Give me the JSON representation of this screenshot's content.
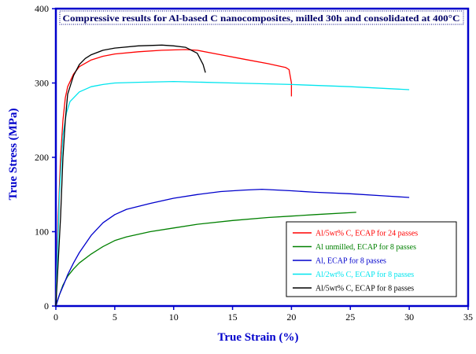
{
  "chart_data": {
    "type": "line",
    "title": "Compressive results for Al-based C nanocomposites, milled 30h and consolidated at 400°C",
    "xlabel": "True Strain (%)",
    "ylabel": "True Stress (MPa)",
    "xlim": [
      0,
      35
    ],
    "ylim": [
      0,
      400
    ],
    "x_ticks": [
      0,
      5,
      10,
      15,
      20,
      25,
      30,
      35
    ],
    "y_ticks": [
      0,
      100,
      200,
      300,
      400
    ],
    "x_tick_labels": [
      "0",
      "5",
      "10",
      "15",
      "20",
      "25",
      "30",
      "35"
    ],
    "y_tick_labels": [
      "0",
      "100",
      "200",
      "300",
      "400"
    ],
    "grid": false,
    "legend_position": "bottom-right",
    "series": [
      {
        "name": "Al/5wt% C, ECAP for 24 passes",
        "color": "#ff0000",
        "points": [
          [
            0,
            0
          ],
          [
            0.2,
            120
          ],
          [
            0.4,
            200
          ],
          [
            0.6,
            250
          ],
          [
            0.8,
            280
          ],
          [
            1,
            295
          ],
          [
            1.5,
            312
          ],
          [
            2,
            322
          ],
          [
            3,
            331
          ],
          [
            4,
            336
          ],
          [
            5,
            339
          ],
          [
            7,
            342
          ],
          [
            9,
            344
          ],
          [
            11,
            345
          ],
          [
            12,
            344
          ],
          [
            14,
            338
          ],
          [
            16,
            332
          ],
          [
            18,
            326
          ],
          [
            19.5,
            321
          ],
          [
            19.8,
            318
          ],
          [
            20,
            300
          ],
          [
            20,
            282
          ]
        ]
      },
      {
        "name": "Al unmilled, ECAP for 8 passes",
        "color": "#008000",
        "points": [
          [
            0,
            0
          ],
          [
            0.3,
            15
          ],
          [
            0.6,
            28
          ],
          [
            1,
            40
          ],
          [
            1.5,
            50
          ],
          [
            2,
            58
          ],
          [
            3,
            70
          ],
          [
            4,
            80
          ],
          [
            5,
            88
          ],
          [
            6,
            93
          ],
          [
            8,
            100
          ],
          [
            10,
            105
          ],
          [
            12,
            110
          ],
          [
            15,
            115
          ],
          [
            18,
            119
          ],
          [
            20,
            121
          ],
          [
            22,
            123
          ],
          [
            25.5,
            126
          ]
        ]
      },
      {
        "name": "Al, ECAP for 8 passes",
        "color": "#0000cc",
        "points": [
          [
            0,
            0
          ],
          [
            0.3,
            15
          ],
          [
            0.7,
            30
          ],
          [
            1,
            42
          ],
          [
            1.5,
            58
          ],
          [
            2,
            72
          ],
          [
            3,
            95
          ],
          [
            4,
            112
          ],
          [
            5,
            123
          ],
          [
            6,
            130
          ],
          [
            8,
            138
          ],
          [
            10,
            145
          ],
          [
            12,
            150
          ],
          [
            14,
            154
          ],
          [
            16,
            156
          ],
          [
            17.5,
            157
          ],
          [
            20,
            155
          ],
          [
            22,
            153
          ],
          [
            25,
            151
          ],
          [
            28,
            148
          ],
          [
            30,
            146
          ]
        ]
      },
      {
        "name": "Al/2wt% C, ECAP for 8 passes",
        "color": "#00e5ee",
        "points": [
          [
            0,
            0
          ],
          [
            0.3,
            150
          ],
          [
            0.6,
            230
          ],
          [
            0.9,
            260
          ],
          [
            1.2,
            275
          ],
          [
            2,
            288
          ],
          [
            3,
            295
          ],
          [
            4,
            298
          ],
          [
            5,
            300
          ],
          [
            7,
            301
          ],
          [
            10,
            302
          ],
          [
            15,
            300
          ],
          [
            20,
            298
          ],
          [
            25,
            295
          ],
          [
            30,
            291
          ]
        ]
      },
      {
        "name": "Al/5wt% C, ECAP for 8 passes",
        "color": "#000000",
        "points": [
          [
            0,
            0
          ],
          [
            0.4,
            120
          ],
          [
            0.6,
            200
          ],
          [
            0.8,
            250
          ],
          [
            1,
            285
          ],
          [
            1.5,
            310
          ],
          [
            2,
            325
          ],
          [
            2.5,
            333
          ],
          [
            3,
            338
          ],
          [
            4,
            344
          ],
          [
            5,
            347
          ],
          [
            7,
            350
          ],
          [
            9,
            351
          ],
          [
            10,
            350
          ],
          [
            11,
            348
          ],
          [
            12,
            340
          ],
          [
            12.5,
            325
          ],
          [
            12.7,
            314
          ]
        ]
      }
    ]
  }
}
